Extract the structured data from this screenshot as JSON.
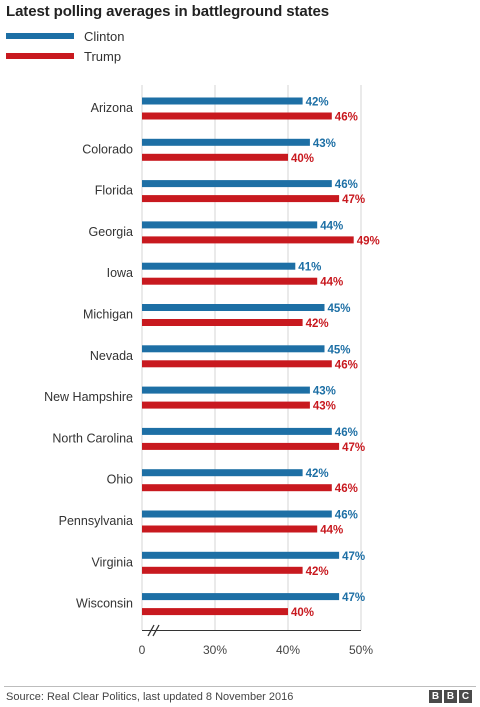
{
  "title": "Latest polling averages in battleground states",
  "legend": [
    {
      "name": "Clinton",
      "color": "#1d6fa5"
    },
    {
      "name": "Trump",
      "color": "#c8191f"
    }
  ],
  "source": "Source: Real Clear Politics, last updated 8 November 2016",
  "logo": [
    "B",
    "B",
    "C"
  ],
  "chart_data": {
    "type": "bar",
    "orientation": "horizontal",
    "categories": [
      "Arizona",
      "Colorado",
      "Florida",
      "Georgia",
      "Iowa",
      "Michigan",
      "Nevada",
      "New Hampshire",
      "North Carolina",
      "Ohio",
      "Pennsylvania",
      "Virginia",
      "Wisconsin"
    ],
    "series": [
      {
        "name": "Clinton",
        "color": "#1d6fa5",
        "values": [
          42,
          43,
          46,
          44,
          41,
          45,
          45,
          43,
          46,
          42,
          46,
          47,
          47
        ]
      },
      {
        "name": "Trump",
        "color": "#c8191f",
        "values": [
          46,
          40,
          47,
          49,
          44,
          42,
          46,
          43,
          47,
          46,
          44,
          42,
          40
        ]
      }
    ],
    "value_suffix": "%",
    "xaxis": {
      "ticks": [
        {
          "value": 0,
          "label": "0"
        },
        {
          "value": 30,
          "label": "30%"
        },
        {
          "value": 40,
          "label": "40%"
        },
        {
          "value": 50,
          "label": "50%"
        }
      ],
      "axis_break": true,
      "broken_range": [
        0,
        20
      ]
    },
    "grid": true,
    "legend_position": "top-left"
  }
}
